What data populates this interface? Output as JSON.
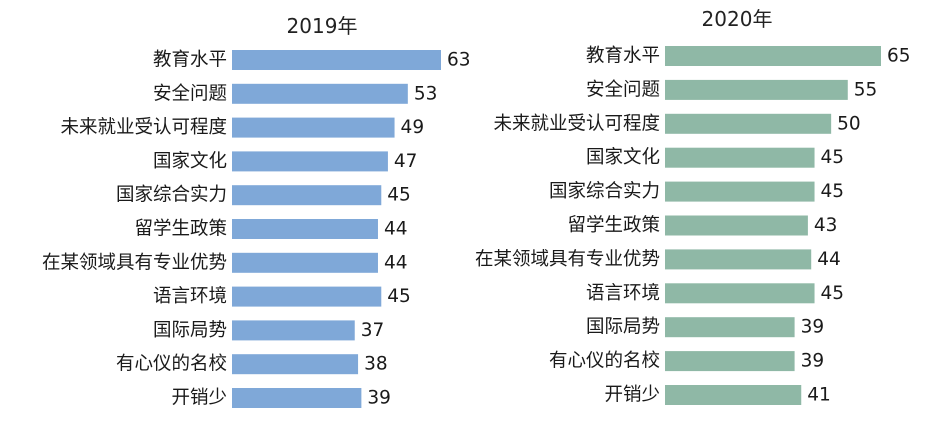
{
  "chart_data": [
    {
      "type": "bar",
      "orientation": "horizontal",
      "title": "2019年",
      "color": "#7fa8d8",
      "categories": [
        "教育水平",
        "安全问题",
        "未来就业受认可程度",
        "国家文化",
        "国家综合实力",
        "留学生政策",
        "在某领域具有专业优势",
        "语言环境",
        "国际局势",
        "有心仪的名校",
        "开销少"
      ],
      "values": [
        63,
        53,
        49,
        47,
        45,
        44,
        44,
        45,
        37,
        38,
        39
      ],
      "value_labels": [
        "63",
        "53",
        "49",
        "47",
        "45",
        "44",
        "44",
        "45",
        "37",
        "38",
        "39"
      ],
      "grid": false,
      "legend": "none"
    },
    {
      "type": "bar",
      "orientation": "horizontal",
      "title": "2020年",
      "color": "#8fb8a6",
      "categories": [
        "教育水平",
        "安全问题",
        "未来就业受认可程度",
        "国家文化",
        "国家综合实力",
        "留学生政策",
        "在某领域具有专业优势",
        "语言环境",
        "国际局势",
        "有心仪的名校",
        "开销少"
      ],
      "values": [
        65,
        55,
        50,
        45,
        45,
        43,
        44,
        45,
        39,
        39,
        41
      ],
      "value_labels": [
        "65",
        "55",
        "50",
        "45",
        "45",
        "43",
        "44",
        "45",
        "39",
        "39",
        "41"
      ],
      "grid": false,
      "legend": "none"
    }
  ]
}
